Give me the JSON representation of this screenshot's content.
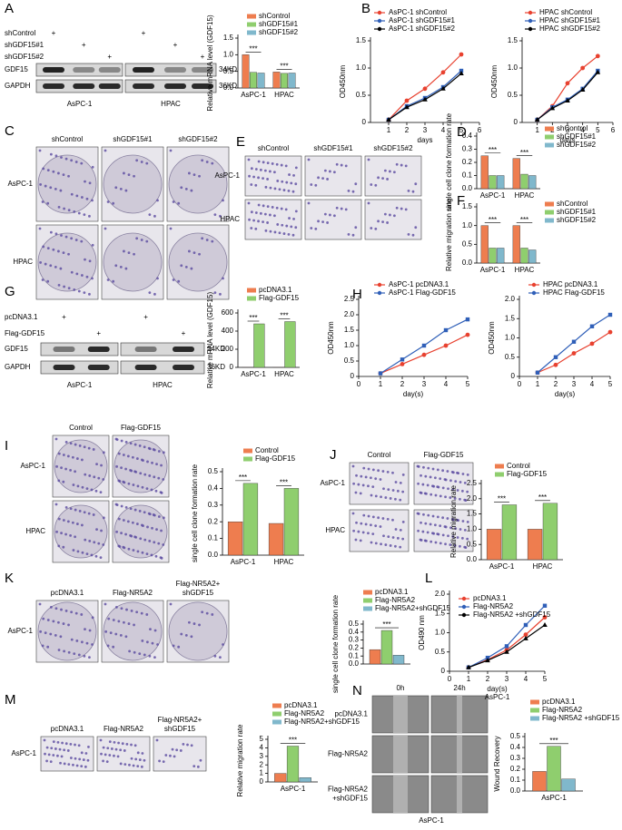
{
  "letters": [
    "A",
    "B",
    "C",
    "D",
    "E",
    "F",
    "G",
    "H",
    "I",
    "J",
    "K",
    "L",
    "M",
    "N"
  ],
  "plus": "+",
  "blot_A": {
    "conditions": [
      "shControl",
      "shGDF15#1",
      "shGDF15#2"
    ],
    "bands": [
      "GDF15",
      "GAPDH"
    ],
    "sizes": [
      "34KD",
      "36KD"
    ],
    "cells": [
      "AsPC-1",
      "HPAC"
    ]
  },
  "blot_G": {
    "conditions": [
      "pcDNA3.1",
      "Flag-GDF15"
    ],
    "bands": [
      "GDF15",
      "GAPDH"
    ],
    "sizes": [
      "34KD",
      "36KD"
    ],
    "cells": [
      "AsPC-1",
      "HPAC"
    ]
  },
  "images_C": {
    "headers": [
      [
        "shControl"
      ],
      [
        "shGDF15#1"
      ],
      [
        "shGDF15#2"
      ]
    ],
    "rows": [
      "AsPC-1",
      "HPAC"
    ]
  },
  "images_E": {
    "headers": [
      [
        "shControl"
      ],
      [
        "shGDF15#1"
      ],
      [
        "shGDF15#2"
      ]
    ],
    "rows": [
      "AsPC-1",
      "HPAC"
    ]
  },
  "images_I": {
    "headers": [
      [
        "Control"
      ],
      [
        "Flag-GDF15"
      ]
    ],
    "rows": [
      "AsPC-1",
      "HPAC"
    ]
  },
  "images_J": {
    "headers": [
      [
        "Control"
      ],
      [
        "Flag-GDF15"
      ]
    ],
    "rows": [
      "AsPC-1",
      "HPAC"
    ]
  },
  "images_K": {
    "headers": [
      [
        "pcDNA3.1"
      ],
      [
        "Flag-NR5A2"
      ],
      [
        "Flag-NR5A2+",
        "shGDF15"
      ]
    ],
    "rows": [
      "AsPC-1"
    ]
  },
  "images_M": {
    "headers": [
      [
        "pcDNA3.1"
      ],
      [
        "Flag-NR5A2"
      ],
      [
        "Flag-NR5A2+",
        "shGDF15"
      ]
    ],
    "rows": [
      "AsPC-1"
    ]
  },
  "images_N": {
    "headers": [
      [
        "0h"
      ],
      [
        "24h"
      ]
    ],
    "rows": [
      [
        "pcDNA3.1"
      ],
      [
        "Flag-NR5A2"
      ],
      [
        "Flag-NR5A2",
        "+shGDF15"
      ]
    ],
    "footer": "AsPC-1"
  },
  "chart_data": [
    {
      "type": "bar",
      "y_label": "Relative mRNA level (GDF15)",
      "categories": [
        "AsPC-1",
        "HPAC"
      ],
      "series": [
        {
          "name": "shControl",
          "color": "#ee7d4f",
          "values": [
            1.0,
            0.48
          ]
        },
        {
          "name": "shGDF15#1",
          "color": "#8fce6e",
          "values": [
            0.47,
            0.44
          ]
        },
        {
          "name": "shGDF15#2",
          "color": "#80b8cc",
          "values": [
            0.45,
            0.45
          ]
        }
      ],
      "ylim": [
        0,
        1.5
      ],
      "yticks": [
        {
          "value": 0,
          "label": "0.0"
        },
        0.5,
        {
          "value": 1,
          "label": "1.0"
        },
        1.5
      ],
      "annotations": [
        "***",
        "***"
      ]
    },
    {
      "type": "line",
      "x_label": "days",
      "y_label": "OD450nm",
      "x": [
        1,
        2,
        3,
        4,
        5
      ],
      "series": [
        {
          "name": "AsPC-1 shControl",
          "color": "#e8412f",
          "values": [
            0.05,
            0.4,
            0.62,
            0.92,
            1.25
          ]
        },
        {
          "name": "AsPC-1 shGDF15#1",
          "color": "#2f5fb8",
          "values": [
            0.05,
            0.3,
            0.45,
            0.65,
            0.95
          ]
        },
        {
          "name": "AsPC-1 shGDF15#2",
          "color": "#000000",
          "values": [
            0.05,
            0.28,
            0.42,
            0.62,
            0.9
          ]
        }
      ],
      "xlim": [
        0,
        6
      ],
      "xticks": [
        1,
        2,
        3,
        4,
        5,
        6
      ],
      "ylim": [
        0,
        1.5
      ],
      "yticks": [
        0,
        0.5,
        {
          "value": 1,
          "label": "1.0"
        },
        1.5
      ]
    },
    {
      "type": "line",
      "x_label": "days",
      "y_label": "OD450nm",
      "x": [
        1,
        2,
        3,
        4,
        5
      ],
      "series": [
        {
          "name": "HPAC shControl",
          "color": "#e8412f",
          "values": [
            0.05,
            0.3,
            0.72,
            1.0,
            1.22
          ]
        },
        {
          "name": "HPAC shGDF15#1",
          "color": "#2f5fb8",
          "values": [
            0.05,
            0.28,
            0.42,
            0.62,
            0.95
          ]
        },
        {
          "name": "HPAC shGDF15#2",
          "color": "#000000",
          "values": [
            0.05,
            0.26,
            0.4,
            0.6,
            0.92
          ]
        }
      ],
      "xlim": [
        0,
        6
      ],
      "xticks": [
        1,
        2,
        3,
        4,
        5,
        6
      ],
      "ylim": [
        0,
        1.5
      ],
      "yticks": [
        0,
        0.5,
        {
          "value": 1,
          "label": "1.0"
        },
        1.5
      ]
    },
    {
      "type": "bar",
      "y_label": "single cell clone formation rate",
      "categories": [
        "AsPC-1",
        "HPAC"
      ],
      "series": [
        {
          "name": "shControl",
          "color": "#ee7d4f",
          "values": [
            0.25,
            0.23
          ]
        },
        {
          "name": "shGDF15#1",
          "color": "#8fce6e",
          "values": [
            0.1,
            0.11
          ]
        },
        {
          "name": "shGDF15#2",
          "color": "#80b8cc",
          "values": [
            0.1,
            0.1
          ]
        }
      ],
      "ylim": [
        0,
        0.4
      ],
      "yticks": [
        {
          "value": 0,
          "label": "0.0"
        },
        0.1,
        0.2,
        0.3,
        0.4
      ],
      "annotations": [
        "***",
        "***"
      ]
    },
    {
      "type": "bar",
      "y_label": "Relative migration rate",
      "categories": [
        "AsPC-1",
        "HPAC"
      ],
      "series": [
        {
          "name": "shControl",
          "color": "#ee7d4f",
          "values": [
            1.0,
            1.0
          ]
        },
        {
          "name": "shGDF15#1",
          "color": "#8fce6e",
          "values": [
            0.4,
            0.4
          ]
        },
        {
          "name": "shGDF15#2",
          "color": "#80b8cc",
          "values": [
            0.4,
            0.35
          ]
        }
      ],
      "ylim": [
        0,
        1.5
      ],
      "yticks": [
        {
          "value": 0,
          "label": "0.0"
        },
        0.5,
        {
          "value": 1,
          "label": "1.0"
        },
        1.5
      ],
      "annotations": [
        "***",
        "***"
      ]
    },
    {
      "type": "bar",
      "y_label": "Relative mRNA level (GDF15)",
      "categories": [
        "AsPC-1",
        "HPAC"
      ],
      "series": [
        {
          "name": "pcDNA3.1",
          "color": "#ee7d4f",
          "values": [
            1,
            1
          ]
        },
        {
          "name": "Flag-GDF15",
          "color": "#8fce6e",
          "values": [
            480,
            505
          ]
        }
      ],
      "ylim": [
        0,
        600
      ],
      "yticks": [
        0,
        200,
        400,
        600
      ],
      "annotations": [
        "***",
        "***"
      ]
    },
    {
      "type": "line",
      "x_label": "day(s)",
      "y_label": "OD450nm",
      "x": [
        1,
        2,
        3,
        4,
        5
      ],
      "series": [
        {
          "name": "AsPC-1 pcDNA3.1",
          "color": "#e8412f",
          "values": [
            0.1,
            0.4,
            0.7,
            1.0,
            1.35
          ]
        },
        {
          "name": "AsPC-1 Flag-GDF15",
          "color": "#2f5fb8",
          "values": [
            0.1,
            0.55,
            1.0,
            1.5,
            1.85
          ]
        }
      ],
      "xlim": [
        0,
        5
      ],
      "xticks": [
        0,
        1,
        2,
        3,
        4,
        5
      ],
      "ylim": [
        0,
        2.5
      ],
      "yticks": [
        0,
        0.5,
        {
          "value": 1,
          "label": "1.0"
        },
        1.5,
        {
          "value": 2,
          "label": "2.0"
        },
        2.5
      ]
    },
    {
      "type": "line",
      "x_label": "day(s)",
      "y_label": "OD450nm",
      "x": [
        1,
        2,
        3,
        4,
        5
      ],
      "series": [
        {
          "name": "HPAC pcDNA3.1",
          "color": "#e8412f",
          "values": [
            0.1,
            0.3,
            0.6,
            0.85,
            1.15
          ]
        },
        {
          "name": "HPAC Flag-GDF15",
          "color": "#2f5fb8",
          "values": [
            0.1,
            0.5,
            0.9,
            1.3,
            1.6
          ]
        }
      ],
      "xlim": [
        0,
        5
      ],
      "xticks": [
        0,
        1,
        2,
        3,
        4,
        5
      ],
      "ylim": [
        0,
        2.0
      ],
      "yticks": [
        0,
        0.5,
        {
          "value": 1,
          "label": "1.0"
        },
        1.5,
        {
          "value": 2,
          "label": "2.0"
        }
      ]
    },
    {
      "type": "bar",
      "y_label": "single cell clone formation rate",
      "categories": [
        "AsPC-1",
        "HPAC"
      ],
      "series": [
        {
          "name": "Control",
          "color": "#ee7d4f",
          "values": [
            0.2,
            0.19
          ]
        },
        {
          "name": "Flag-GDF15",
          "color": "#8fce6e",
          "values": [
            0.43,
            0.4
          ]
        }
      ],
      "ylim": [
        0,
        0.5
      ],
      "yticks": [
        {
          "value": 0,
          "label": "0.0"
        },
        0.1,
        0.2,
        0.3,
        0.4,
        0.5
      ],
      "annotations": [
        "***",
        "***"
      ]
    },
    {
      "type": "bar",
      "y_label": "Relative migration rate",
      "categories": [
        "AsPC-1",
        "HPAC"
      ],
      "series": [
        {
          "name": "Control",
          "color": "#ee7d4f",
          "values": [
            1.0,
            1.0
          ]
        },
        {
          "name": "Flag-GDF15",
          "color": "#8fce6e",
          "values": [
            1.8,
            1.85
          ]
        }
      ],
      "ylim": [
        0,
        2.5
      ],
      "yticks": [
        {
          "value": 0,
          "label": "0.0"
        },
        0.5,
        {
          "value": 1,
          "label": "1.0"
        },
        1.5,
        {
          "value": 2,
          "label": "2.0"
        },
        2.5
      ],
      "annotations": [
        "***",
        "***"
      ]
    },
    {
      "type": "bar",
      "y_label": "single cell clone formation rate",
      "categories": [
        null
      ],
      "series": [
        {
          "name": "pcDNA3.1",
          "color": "#ee7d4f",
          "values": [
            0.18
          ]
        },
        {
          "name": "Flag-NR5A2",
          "color": "#8fce6e",
          "values": [
            0.42
          ]
        },
        {
          "name": "Flag-NR5A2+shGDF15",
          "color": "#80b8cc",
          "values": [
            0.11
          ]
        }
      ],
      "ylim": [
        0,
        0.5
      ],
      "yticks": [
        {
          "value": 0,
          "label": "0.0"
        },
        0.1,
        0.2,
        0.3,
        0.4,
        0.5
      ],
      "annotations": [
        "***"
      ]
    },
    {
      "type": "line",
      "x_label": "day(s)",
      "subtitle": "AsPC-1",
      "y_label": "OD490 nm",
      "x": [
        1,
        2,
        3,
        4,
        5
      ],
      "series": [
        {
          "name": "pcDNA3.1",
          "color": "#e8412f",
          "values": [
            0.1,
            0.3,
            0.55,
            0.95,
            1.4
          ]
        },
        {
          "name": "Flag-NR5A2",
          "color": "#2f5fb8",
          "values": [
            0.1,
            0.35,
            0.65,
            1.2,
            1.7
          ]
        },
        {
          "name": "Flag-NR5A2 +shGDF15",
          "color": "#000000",
          "values": [
            0.1,
            0.28,
            0.5,
            0.85,
            1.2
          ]
        }
      ],
      "xlim": [
        0,
        5
      ],
      "xticks": [
        0,
        1,
        2,
        3,
        4,
        5
      ],
      "ylim": [
        0,
        2.0
      ],
      "yticks": [
        0,
        0.5,
        {
          "value": 1,
          "label": "1.0"
        },
        1.5,
        {
          "value": 2,
          "label": "2.0"
        }
      ]
    },
    {
      "type": "bar",
      "y_label": "Relative migration rate",
      "categories": [
        "AsPC-1"
      ],
      "series": [
        {
          "name": "pcDNA3.1",
          "color": "#ee7d4f",
          "values": [
            1.0
          ]
        },
        {
          "name": "Flag-NR5A2",
          "color": "#8fce6e",
          "values": [
            4.2
          ]
        },
        {
          "name": "Flag-NR5A2+shGDF15",
          "color": "#80b8cc",
          "values": [
            0.5
          ]
        }
      ],
      "ylim": [
        0,
        5
      ],
      "yticks": [
        0,
        1,
        2,
        3,
        4,
        5
      ],
      "annotations": [
        "***"
      ]
    },
    {
      "type": "bar",
      "y_label": "Wound Recovery",
      "categories": [
        "AsPC-1"
      ],
      "series": [
        {
          "name": "pcDNA3.1",
          "color": "#ee7d4f",
          "values": [
            0.18
          ]
        },
        {
          "name": "Flag-NR5A2",
          "color": "#8fce6e",
          "values": [
            0.41
          ]
        },
        {
          "name": "Flag-NR5A2 +shGDF15",
          "color": "#80b8cc",
          "values": [
            0.11
          ]
        }
      ],
      "ylim": [
        0,
        0.5
      ],
      "yticks": [
        {
          "value": 0,
          "label": "0.0"
        },
        0.1,
        0.2,
        0.3,
        0.4,
        0.5
      ],
      "annotations": [
        "***"
      ]
    }
  ]
}
